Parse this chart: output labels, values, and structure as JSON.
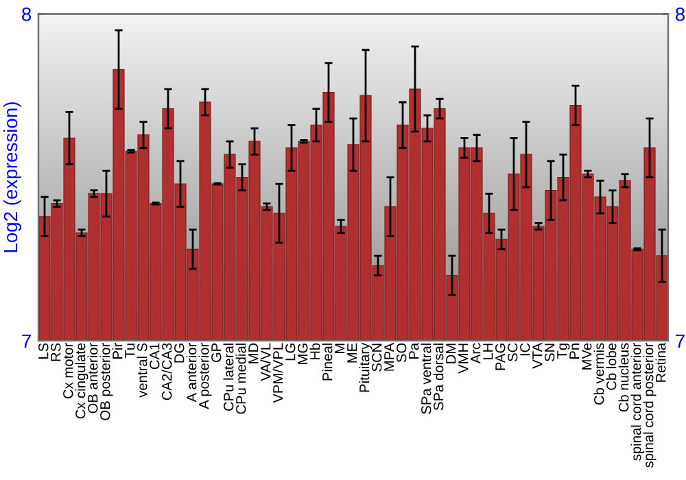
{
  "chart_data": {
    "type": "bar",
    "ylabel": "Log2 (expression)",
    "categories": [
      "LS",
      "RS",
      "Cx motor",
      "Cx cingulate",
      "OB anterior",
      "OB posterior",
      "Pir",
      "Tu",
      "ventral S",
      "CA1",
      "CA2/CA3",
      "DG",
      "A anterior",
      "A posterior",
      "GP",
      "CPu lateral",
      "CPu medial",
      "MD",
      "VA/VL",
      "VPM/VPL",
      "LG",
      "MG",
      "Hb",
      "Pineal",
      "M",
      "ME",
      "Pituitary",
      "SCN",
      "MPA",
      "SO",
      "Pa",
      "SPa ventral",
      "SPa dorsal",
      "DM",
      "VMH",
      "Arc",
      "LH",
      "PAG",
      "SC",
      "IC",
      "VTA",
      "SN",
      "Tg",
      "Pn",
      "MVe",
      "Cb vermis",
      "Cb lobe",
      "Cb nucleus",
      "spinal cord anterior",
      "spinal cord posterior",
      "Retina"
    ],
    "values": [
      7.38,
      7.42,
      7.62,
      7.33,
      7.45,
      7.45,
      7.83,
      7.58,
      7.63,
      7.42,
      7.71,
      7.48,
      7.28,
      7.73,
      7.48,
      7.57,
      7.5,
      7.61,
      7.41,
      7.39,
      7.59,
      7.61,
      7.66,
      7.76,
      7.35,
      7.6,
      7.75,
      7.23,
      7.41,
      7.66,
      7.77,
      7.65,
      7.71,
      7.2,
      7.59,
      7.59,
      7.39,
      7.31,
      7.51,
      7.57,
      7.35,
      7.46,
      7.5,
      7.72,
      7.51,
      7.44,
      7.41,
      7.49,
      7.28,
      7.59,
      7.26
    ],
    "errors": [
      0.06,
      0.01,
      0.08,
      0.01,
      0.01,
      0.07,
      0.12,
      0.004,
      0.04,
      0.003,
      0.06,
      0.07,
      0.06,
      0.04,
      0.002,
      0.04,
      0.04,
      0.04,
      0.01,
      0.09,
      0.07,
      0.004,
      0.05,
      0.09,
      0.02,
      0.08,
      0.14,
      0.03,
      0.09,
      0.07,
      0.13,
      0.04,
      0.03,
      0.06,
      0.03,
      0.04,
      0.06,
      0.03,
      0.11,
      0.1,
      0.01,
      0.09,
      0.07,
      0.06,
      0.01,
      0.05,
      0.05,
      0.02,
      0.003,
      0.09,
      0.08
    ],
    "color": "#b03030",
    "ylim": [
      7,
      8
    ],
    "yticks": [
      7,
      8
    ],
    "y2lim": [
      7,
      8
    ],
    "y2ticks": [
      7,
      8
    ],
    "grid": false,
    "legend": false
  }
}
